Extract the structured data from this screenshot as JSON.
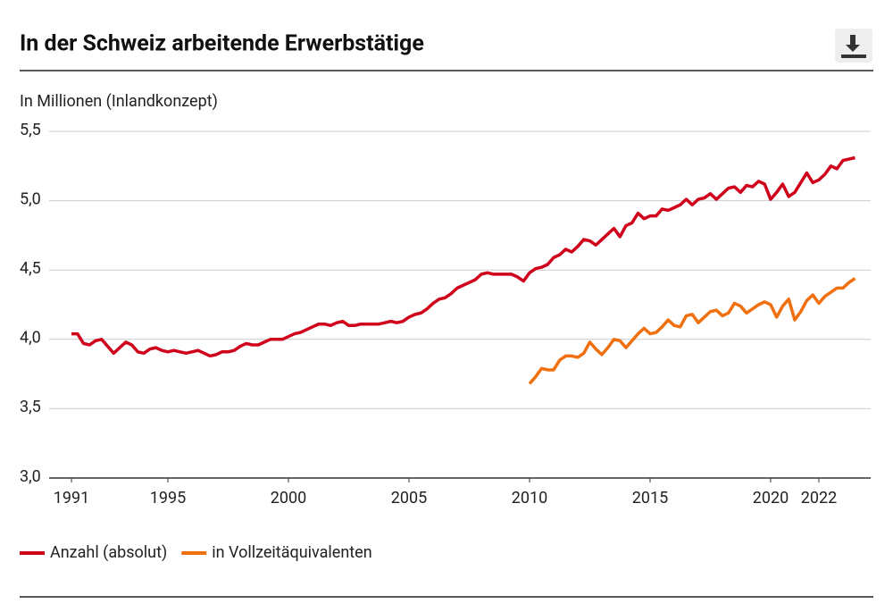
{
  "chart_data": {
    "type": "line",
    "title": "In der Schweiz arbeitende Erwerbstätige",
    "y_label": "In Millionen (Inlandkonzept)",
    "xlim": [
      1988.85,
      2024.15
    ],
    "xticks": [
      1991,
      1995,
      2000,
      2005,
      2010,
      2015,
      2020,
      2022
    ],
    "ylim": [
      3.0,
      5.5
    ],
    "yticks": [
      {
        "value": 3.0,
        "label": "3,0"
      },
      {
        "value": 3.5,
        "label": "3,5"
      },
      {
        "value": 4.0,
        "label": "4,0"
      },
      {
        "value": 4.5,
        "label": "4,5"
      },
      {
        "value": 5.0,
        "label": "5,0"
      },
      {
        "value": 5.5,
        "label": "5,5"
      }
    ],
    "grid": true,
    "legend": "bottom-left",
    "series": [
      {
        "name": "Anzahl (absolut)",
        "color": "#d0021b",
        "x": [
          1991,
          1991.25,
          1991.5,
          1991.75,
          1992,
          1992.25,
          1992.5,
          1992.75,
          1993,
          1993.25,
          1993.5,
          1993.75,
          1994,
          1994.25,
          1994.5,
          1994.75,
          1995,
          1995.25,
          1995.5,
          1995.75,
          1996,
          1996.25,
          1996.5,
          1996.75,
          1997,
          1997.25,
          1997.5,
          1997.75,
          1998,
          1998.25,
          1998.5,
          1998.75,
          1999,
          1999.25,
          1999.5,
          1999.75,
          2000,
          2000.25,
          2000.5,
          2000.75,
          2001,
          2001.25,
          2001.5,
          2001.75,
          2002,
          2002.25,
          2002.5,
          2002.75,
          2003,
          2003.25,
          2003.5,
          2003.75,
          2004,
          2004.25,
          2004.5,
          2004.75,
          2005,
          2005.25,
          2005.5,
          2005.75,
          2006,
          2006.25,
          2006.5,
          2006.75,
          2007,
          2007.25,
          2007.5,
          2007.75,
          2008,
          2008.25,
          2008.5,
          2008.75,
          2009,
          2009.25,
          2009.5,
          2009.75,
          2010,
          2010.25,
          2010.5,
          2010.75,
          2011,
          2011.25,
          2011.5,
          2011.75,
          2012,
          2012.25,
          2012.5,
          2012.75,
          2013,
          2013.25,
          2013.5,
          2013.75,
          2014,
          2014.25,
          2014.5,
          2014.75,
          2015,
          2015.25,
          2015.5,
          2015.75,
          2016,
          2016.25,
          2016.5,
          2016.75,
          2017,
          2017.25,
          2017.5,
          2017.75,
          2018,
          2018.25,
          2018.5,
          2018.75,
          2019,
          2019.25,
          2019.5,
          2019.75,
          2020,
          2020.25,
          2020.5,
          2020.75,
          2021,
          2021.25,
          2021.5,
          2021.75,
          2022,
          2022.25,
          2022.5,
          2022.75,
          2023,
          2023.25,
          2023.5
        ],
        "values": [
          4.04,
          4.04,
          3.97,
          3.96,
          3.99,
          4.0,
          3.95,
          3.9,
          3.94,
          3.98,
          3.96,
          3.91,
          3.9,
          3.93,
          3.94,
          3.92,
          3.91,
          3.92,
          3.91,
          3.9,
          3.91,
          3.92,
          3.9,
          3.88,
          3.89,
          3.91,
          3.91,
          3.92,
          3.95,
          3.97,
          3.96,
          3.96,
          3.98,
          4.0,
          4.0,
          4.0,
          4.02,
          4.04,
          4.05,
          4.07,
          4.09,
          4.11,
          4.11,
          4.1,
          4.12,
          4.13,
          4.1,
          4.1,
          4.11,
          4.11,
          4.11,
          4.11,
          4.12,
          4.13,
          4.12,
          4.13,
          4.16,
          4.18,
          4.19,
          4.22,
          4.26,
          4.29,
          4.3,
          4.33,
          4.37,
          4.39,
          4.41,
          4.43,
          4.47,
          4.48,
          4.47,
          4.47,
          4.47,
          4.47,
          4.45,
          4.42,
          4.48,
          4.51,
          4.52,
          4.54,
          4.59,
          4.61,
          4.65,
          4.63,
          4.67,
          4.72,
          4.71,
          4.68,
          4.72,
          4.76,
          4.8,
          4.74,
          4.82,
          4.84,
          4.91,
          4.87,
          4.89,
          4.89,
          4.94,
          4.93,
          4.95,
          4.97,
          5.01,
          4.97,
          5.01,
          5.02,
          5.05,
          5.01,
          5.05,
          5.09,
          5.1,
          5.06,
          5.11,
          5.1,
          5.14,
          5.12,
          5.01,
          5.06,
          5.12,
          5.03,
          5.06,
          5.13,
          5.2,
          5.13,
          5.15,
          5.19,
          5.25,
          5.23,
          5.29,
          5.3,
          5.31
        ]
      },
      {
        "name": "in Vollzeitäquivalenten",
        "color": "#f07010",
        "x": [
          2010,
          2010.25,
          2010.5,
          2010.75,
          2011,
          2011.25,
          2011.5,
          2011.75,
          2012,
          2012.25,
          2012.5,
          2012.75,
          2013,
          2013.25,
          2013.5,
          2013.75,
          2014,
          2014.25,
          2014.5,
          2014.75,
          2015,
          2015.25,
          2015.5,
          2015.75,
          2016,
          2016.25,
          2016.5,
          2016.75,
          2017,
          2017.25,
          2017.5,
          2017.75,
          2018,
          2018.25,
          2018.5,
          2018.75,
          2019,
          2019.25,
          2019.5,
          2019.75,
          2020,
          2020.25,
          2020.5,
          2020.75,
          2021,
          2021.25,
          2021.5,
          2021.75,
          2022,
          2022.25,
          2022.5,
          2022.75,
          2023,
          2023.25,
          2023.5
        ],
        "values": [
          3.68,
          3.73,
          3.79,
          3.78,
          3.78,
          3.85,
          3.88,
          3.88,
          3.87,
          3.9,
          3.98,
          3.93,
          3.89,
          3.94,
          4.0,
          3.99,
          3.94,
          3.99,
          4.04,
          4.08,
          4.04,
          4.05,
          4.09,
          4.14,
          4.1,
          4.09,
          4.17,
          4.18,
          4.12,
          4.16,
          4.2,
          4.21,
          4.17,
          4.19,
          4.26,
          4.24,
          4.19,
          4.22,
          4.25,
          4.27,
          4.25,
          4.16,
          4.24,
          4.29,
          4.14,
          4.2,
          4.28,
          4.32,
          4.26,
          4.31,
          4.34,
          4.37,
          4.37,
          4.41,
          4.44
        ]
      }
    ]
  }
}
